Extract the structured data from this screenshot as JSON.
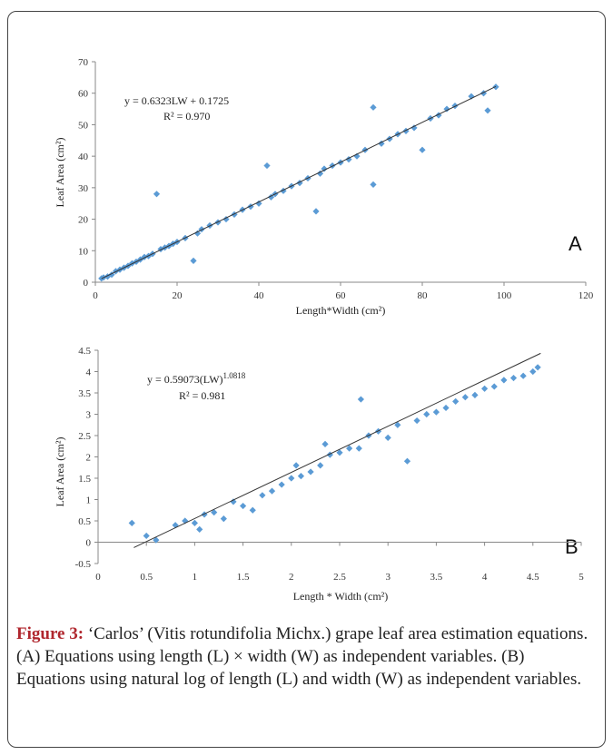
{
  "chart_data": [
    {
      "type": "scatter",
      "panel": "A",
      "xlabel": "Length*Width (cm²)",
      "ylabel": "Leaf Area (cm²)",
      "xlim": [
        0,
        120
      ],
      "ylim": [
        0,
        70
      ],
      "xticks": [
        0,
        20,
        40,
        60,
        80,
        100,
        120
      ],
      "yticks": [
        0,
        10,
        20,
        30,
        40,
        50,
        60,
        70
      ],
      "grid": false,
      "marker_color": "#5b9bd5",
      "equation": "y = 0.6323LW + 0.1725",
      "r2": "R² = 0.970",
      "fit": {
        "slope": 0.6323,
        "intercept": 0.1725,
        "x_range": [
          1.5,
          98
        ]
      },
      "points": [
        [
          1.5,
          1.2
        ],
        [
          2,
          1.5
        ],
        [
          3,
          1.8
        ],
        [
          4,
          2.4
        ],
        [
          5,
          3.5
        ],
        [
          6,
          4.0
        ],
        [
          7,
          4.6
        ],
        [
          8,
          5.2
        ],
        [
          9,
          6.0
        ],
        [
          10,
          6.5
        ],
        [
          11,
          7.2
        ],
        [
          12,
          8.0
        ],
        [
          13,
          8.3
        ],
        [
          14,
          9.0
        ],
        [
          15,
          28
        ],
        [
          16,
          10.5
        ],
        [
          17,
          11.0
        ],
        [
          18,
          11.5
        ],
        [
          19,
          12.2
        ],
        [
          20,
          12.8
        ],
        [
          22,
          14.0
        ],
        [
          24,
          6.8
        ],
        [
          25,
          15.5
        ],
        [
          26,
          16.8
        ],
        [
          28,
          18.0
        ],
        [
          30,
          19.0
        ],
        [
          32,
          20.0
        ],
        [
          34,
          21.5
        ],
        [
          36,
          23.0
        ],
        [
          38,
          24.0
        ],
        [
          40,
          25.0
        ],
        [
          42,
          37
        ],
        [
          43,
          27.0
        ],
        [
          44,
          28.0
        ],
        [
          46,
          29.0
        ],
        [
          48,
          30.5
        ],
        [
          50,
          31.5
        ],
        [
          52,
          33.0
        ],
        [
          54,
          22.5
        ],
        [
          55,
          34.5
        ],
        [
          56,
          36.0
        ],
        [
          58,
          37.0
        ],
        [
          60,
          38.0
        ],
        [
          62,
          39.0
        ],
        [
          64,
          40.0
        ],
        [
          66,
          42.0
        ],
        [
          68,
          55.5
        ],
        [
          68,
          31.0
        ],
        [
          70,
          44.0
        ],
        [
          72,
          45.5
        ],
        [
          74,
          47.0
        ],
        [
          76,
          48.0
        ],
        [
          78,
          49.0
        ],
        [
          80,
          42.0
        ],
        [
          82,
          52.0
        ],
        [
          84,
          53.0
        ],
        [
          86,
          55.0
        ],
        [
          88,
          56.0
        ],
        [
          92,
          59.0
        ],
        [
          95,
          60.0
        ],
        [
          96,
          54.5
        ],
        [
          98,
          62.0
        ]
      ]
    },
    {
      "type": "scatter",
      "panel": "B",
      "xlabel": "Length * Width (cm²)",
      "ylabel": "Leaf Area (cm²)",
      "xlim": [
        0,
        5
      ],
      "ylim": [
        -0.5,
        4.5
      ],
      "xticks": [
        0,
        0.5,
        1,
        1.5,
        2,
        2.5,
        3,
        3.5,
        4,
        4.5,
        5
      ],
      "yticks": [
        -0.5,
        0,
        0.5,
        1,
        1.5,
        2,
        2.5,
        3,
        3.5,
        4,
        4.5
      ],
      "grid": false,
      "marker_color": "#5b9bd5",
      "equation": "y = 0.59073(LW)",
      "equation_exponent": "1.0818",
      "r2": "R² = 0.981",
      "fit": {
        "slope": 1.0818,
        "intercept": -0.5266,
        "x_range": [
          0.37,
          4.58
        ]
      },
      "points": [
        [
          0.35,
          0.45
        ],
        [
          0.5,
          0.15
        ],
        [
          0.6,
          0.05
        ],
        [
          0.8,
          0.4
        ],
        [
          0.9,
          0.5
        ],
        [
          1.0,
          0.45
        ],
        [
          1.05,
          0.3
        ],
        [
          1.1,
          0.65
        ],
        [
          1.2,
          0.7
        ],
        [
          1.3,
          0.55
        ],
        [
          1.4,
          0.95
        ],
        [
          1.5,
          0.85
        ],
        [
          1.6,
          0.75
        ],
        [
          1.7,
          1.1
        ],
        [
          1.8,
          1.2
        ],
        [
          1.9,
          1.35
        ],
        [
          2.0,
          1.5
        ],
        [
          2.05,
          1.8
        ],
        [
          2.1,
          1.55
        ],
        [
          2.2,
          1.65
        ],
        [
          2.3,
          1.8
        ],
        [
          2.35,
          2.3
        ],
        [
          2.4,
          2.05
        ],
        [
          2.5,
          2.1
        ],
        [
          2.6,
          2.2
        ],
        [
          2.7,
          2.2
        ],
        [
          2.72,
          3.35
        ],
        [
          2.8,
          2.5
        ],
        [
          2.9,
          2.6
        ],
        [
          3.0,
          2.45
        ],
        [
          3.1,
          2.75
        ],
        [
          3.2,
          1.9
        ],
        [
          3.3,
          2.85
        ],
        [
          3.4,
          3.0
        ],
        [
          3.5,
          3.05
        ],
        [
          3.6,
          3.15
        ],
        [
          3.7,
          3.3
        ],
        [
          3.8,
          3.4
        ],
        [
          3.9,
          3.45
        ],
        [
          4.0,
          3.6
        ],
        [
          4.1,
          3.65
        ],
        [
          4.2,
          3.8
        ],
        [
          4.3,
          3.85
        ],
        [
          4.4,
          3.9
        ],
        [
          4.5,
          4.0
        ],
        [
          4.55,
          4.1
        ]
      ]
    }
  ],
  "panel_letters": {
    "a": "A",
    "b": "B"
  },
  "caption": {
    "label": "Figure 3:",
    "text": " ‘Carlos’ (Vitis rotundifolia Michx.) grape leaf area estimation equations. (A) Equations using length (L) × width (W) as independent variables. (B) Equations using natural log of length (L) and width (W) as independent variables."
  }
}
